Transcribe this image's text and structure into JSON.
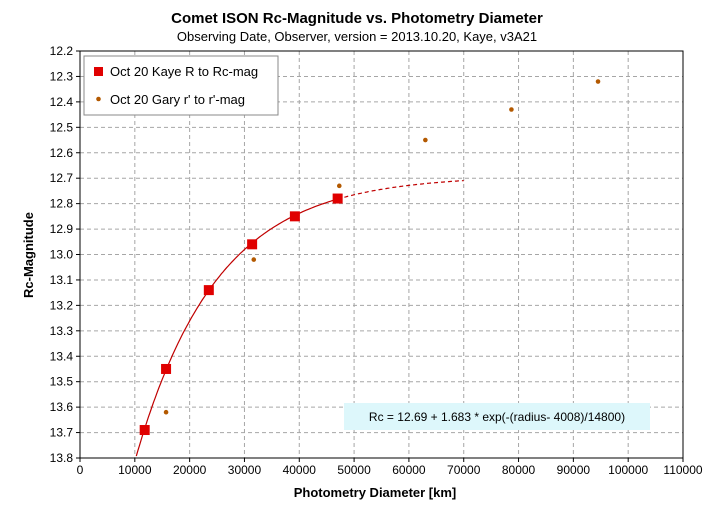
{
  "chart_data": {
    "type": "scatter",
    "title": "Comet ISON Rc-Magnitude  vs. Photometry Diameter",
    "subtitle": "Observing Date, Observer, version = 2013.10.20, Kaye, v3A21",
    "xlabel": "Photometry Diameter  [km]",
    "ylabel": "Rc-Magnitude",
    "xlim": [
      0,
      110000
    ],
    "ylim": [
      12.2,
      13.8
    ],
    "y_inverted": true,
    "grid": true,
    "legend_position": "top-left",
    "x_ticks": [
      0,
      10000,
      20000,
      30000,
      40000,
      50000,
      60000,
      70000,
      80000,
      90000,
      100000,
      110000
    ],
    "y_ticks": [
      12.2,
      12.3,
      12.4,
      12.5,
      12.6,
      12.7,
      12.8,
      12.9,
      13.0,
      13.1,
      13.2,
      13.3,
      13.4,
      13.5,
      13.6,
      13.7,
      13.8
    ],
    "series": [
      {
        "name": "Oct 20 Kaye R to Rc-mag",
        "marker": "square",
        "color": "#e00000",
        "x": [
          11800,
          15700,
          23500,
          31400,
          39200,
          47000
        ],
        "y": [
          13.69,
          13.45,
          13.14,
          12.96,
          12.85,
          12.78
        ]
      },
      {
        "name": "Oct 20 Gary r' to r'-mag",
        "marker": "dot",
        "color": "#b35900",
        "x": [
          15700,
          31700,
          47300,
          63000,
          78700,
          94500
        ],
        "y": [
          13.62,
          13.02,
          12.73,
          12.55,
          12.43,
          12.32
        ]
      }
    ],
    "fit_curve": {
      "color": "#c00000",
      "solid_x_range": [
        9000,
        47000
      ],
      "dashed_x_range": [
        47000,
        70000
      ],
      "c0": 12.69,
      "c1": 1.683,
      "x0": 4008,
      "scale": 14800
    },
    "annotation": {
      "text": "Rc = 12.69 + 1.683  * exp(-(radius- 4008)/14800)",
      "background": "#ddf7fb"
    },
    "colors": {
      "grid": "#a6a6a6",
      "axis": "#000000",
      "legend_border": "#888888"
    }
  }
}
